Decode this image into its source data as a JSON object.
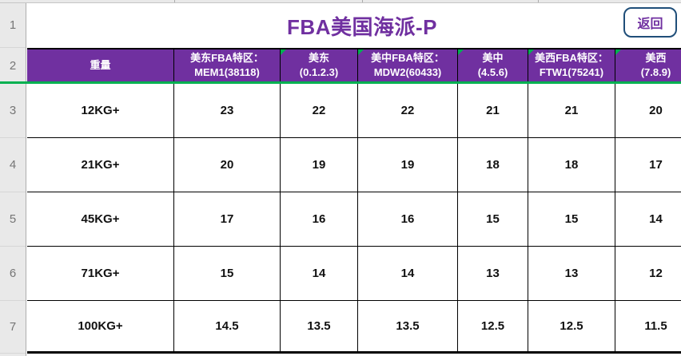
{
  "sheet": {
    "title": "FBA美国海派-P",
    "back_button_label": "返回",
    "row_numbers": [
      "1",
      "2",
      "3",
      "4",
      "5",
      "6",
      "7"
    ],
    "header": {
      "columns": [
        {
          "line1": "重量",
          "line2": "",
          "marker": false
        },
        {
          "line1": "美东FBA特区：",
          "line2": "MEM1(38118)",
          "marker": false
        },
        {
          "line1": "美东",
          "line2": "(0.1.2.3)",
          "marker": true
        },
        {
          "line1": "美中FBA特区：",
          "line2": "MDW2(60433)",
          "marker": true
        },
        {
          "line1": "美中",
          "line2": "(4.5.6)",
          "marker": true
        },
        {
          "line1": "美西FBA特区：",
          "line2": "FTW1(75241)",
          "marker": true
        },
        {
          "line1": "美西",
          "line2": "(7.8.9)",
          "marker": true
        }
      ]
    },
    "rows": [
      {
        "weight": "12KG+",
        "values": [
          "23",
          "22",
          "22",
          "21",
          "21",
          "20"
        ]
      },
      {
        "weight": "21KG+",
        "values": [
          "20",
          "19",
          "19",
          "18",
          "18",
          "17"
        ]
      },
      {
        "weight": "45KG+",
        "values": [
          "17",
          "16",
          "16",
          "15",
          "15",
          "14"
        ]
      },
      {
        "weight": "71KG+",
        "values": [
          "15",
          "14",
          "14",
          "13",
          "13",
          "12"
        ]
      },
      {
        "weight": "100KG+",
        "values": [
          "14.5",
          "13.5",
          "13.5",
          "12.5",
          "12.5",
          "11.5"
        ]
      }
    ]
  },
  "colors": {
    "header_bg": "#7030A0",
    "title_text": "#7030A0",
    "green_accent": "#00B050",
    "button_border": "#1F4E79",
    "button_text": "#7030A0",
    "grid_black": "#000000",
    "gutter_bg": "#E9E9E9",
    "gutter_text": "#757575"
  }
}
